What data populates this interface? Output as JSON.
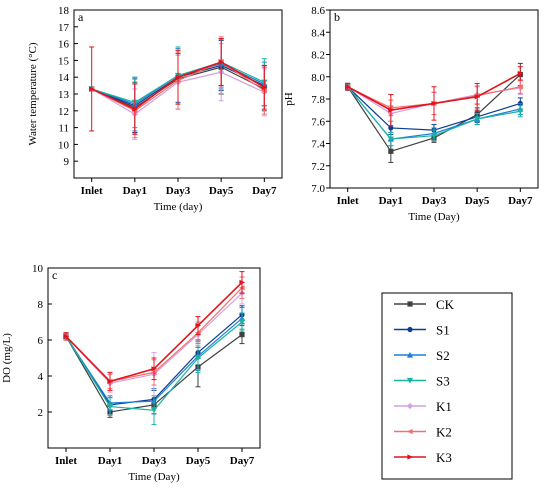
{
  "legend": [
    "CK",
    "S1",
    "S2",
    "S3",
    "K1",
    "K2",
    "K3"
  ],
  "colors": {
    "CK": "#404040",
    "S1": "#0b3d91",
    "S2": "#1f7fd6",
    "S3": "#19b3a0",
    "K1": "#d6a0e0",
    "K2": "#f07070",
    "K3": "#e3131b"
  },
  "chart_data": [
    {
      "id": "a",
      "type": "line",
      "panel_label": "a",
      "xlabel": "Time (day)",
      "ylabel": "Water temperature (°C)",
      "categories": [
        "Inlet",
        "Day1",
        "Day3",
        "Day5",
        "Day7"
      ],
      "ylim": [
        8,
        18
      ],
      "yticks": [
        9,
        10,
        11,
        12,
        13,
        14,
        15,
        16,
        17,
        18
      ],
      "series": [
        {
          "name": "CK",
          "values": [
            13.3,
            12.2,
            13.9,
            14.6,
            13.3
          ],
          "err": [
            0,
            1.5,
            1.5,
            1.6,
            1.3
          ]
        },
        {
          "name": "S1",
          "values": [
            13.3,
            12.3,
            14.0,
            14.7,
            13.5
          ],
          "err": [
            0,
            1.6,
            1.5,
            1.5,
            1.2
          ]
        },
        {
          "name": "S2",
          "values": [
            13.3,
            12.4,
            14.1,
            14.8,
            13.6
          ],
          "err": [
            0,
            1.6,
            1.6,
            1.5,
            1.3
          ]
        },
        {
          "name": "S3",
          "values": [
            13.3,
            12.5,
            14.1,
            14.9,
            13.7
          ],
          "err": [
            0,
            1.5,
            1.7,
            1.4,
            1.4
          ]
        },
        {
          "name": "K1",
          "values": [
            13.3,
            11.8,
            13.7,
            14.3,
            13.1
          ],
          "err": [
            0,
            1.5,
            1.6,
            1.7,
            1.4
          ]
        },
        {
          "name": "K2",
          "values": [
            13.3,
            12.0,
            13.8,
            14.9,
            13.2
          ],
          "err": [
            0,
            1.6,
            1.7,
            1.5,
            1.4
          ]
        },
        {
          "name": "K3",
          "values": [
            13.3,
            12.1,
            14.0,
            14.9,
            13.4
          ],
          "err": [
            2.5,
            1.5,
            1.6,
            1.4,
            1.3
          ]
        }
      ]
    },
    {
      "id": "b",
      "type": "line",
      "panel_label": "b",
      "xlabel": "Time (Day)",
      "ylabel": "pH",
      "categories": [
        "Inlet",
        "Day1",
        "Day3",
        "Day5",
        "Day7"
      ],
      "ylim": [
        7.0,
        8.6
      ],
      "yticks": [
        7.0,
        7.2,
        7.4,
        7.6,
        7.8,
        8.0,
        8.2,
        8.4,
        8.6
      ],
      "series": [
        {
          "name": "CK",
          "values": [
            7.91,
            7.33,
            7.45,
            7.66,
            8.02
          ],
          "err": [
            0.03,
            0.1,
            0.04,
            0.06,
            0.1
          ]
        },
        {
          "name": "S1",
          "values": [
            7.91,
            7.54,
            7.52,
            7.64,
            7.76
          ],
          "err": [
            0.03,
            0.06,
            0.05,
            0.05,
            0.05
          ]
        },
        {
          "name": "S2",
          "values": [
            7.91,
            7.44,
            7.49,
            7.62,
            7.71
          ],
          "err": [
            0.03,
            0.06,
            0.05,
            0.05,
            0.05
          ]
        },
        {
          "name": "S3",
          "values": [
            7.91,
            7.44,
            7.47,
            7.62,
            7.69
          ],
          "err": [
            0.03,
            0.06,
            0.05,
            0.05,
            0.05
          ]
        },
        {
          "name": "K1",
          "values": [
            7.91,
            7.67,
            7.76,
            7.84,
            7.9
          ],
          "err": [
            0.03,
            0.07,
            0.1,
            0.08,
            0.06
          ]
        },
        {
          "name": "K2",
          "values": [
            7.91,
            7.72,
            7.76,
            7.83,
            7.91
          ],
          "err": [
            0.03,
            0.07,
            0.1,
            0.08,
            0.06
          ]
        },
        {
          "name": "K3",
          "values": [
            7.91,
            7.7,
            7.76,
            7.82,
            8.03
          ],
          "err": [
            0.03,
            0.14,
            0.15,
            0.12,
            0.06
          ]
        }
      ]
    },
    {
      "id": "c",
      "type": "line",
      "panel_label": "c",
      "xlabel": "Time (Day)",
      "ylabel": "DO (mg/L)",
      "categories": [
        "Inlet",
        "Day1",
        "Day3",
        "Day5",
        "Day7"
      ],
      "ylim": [
        0,
        10
      ],
      "yticks": [
        2,
        4,
        6,
        8,
        10
      ],
      "series": [
        {
          "name": "CK",
          "values": [
            6.2,
            2.0,
            2.4,
            4.5,
            6.3
          ],
          "err": [
            0.2,
            0.3,
            0.5,
            1.1,
            0.5
          ]
        },
        {
          "name": "S1",
          "values": [
            6.2,
            2.4,
            2.7,
            5.3,
            7.4
          ],
          "err": [
            0.2,
            0.4,
            0.5,
            0.7,
            0.5
          ]
        },
        {
          "name": "S2",
          "values": [
            6.2,
            2.5,
            2.6,
            5.1,
            7.2
          ],
          "err": [
            0.2,
            0.4,
            0.7,
            0.8,
            0.6
          ]
        },
        {
          "name": "S3",
          "values": [
            6.2,
            2.3,
            2.1,
            5.0,
            7.0
          ],
          "err": [
            0.2,
            0.5,
            0.8,
            0.8,
            0.5
          ]
        },
        {
          "name": "K1",
          "values": [
            6.2,
            3.6,
            4.1,
            6.3,
            8.6
          ],
          "err": [
            0.2,
            0.5,
            1.2,
            0.6,
            0.6
          ]
        },
        {
          "name": "K2",
          "values": [
            6.2,
            3.7,
            4.2,
            6.4,
            8.9
          ],
          "err": [
            0.2,
            0.4,
            0.7,
            0.6,
            0.6
          ]
        },
        {
          "name": "K3",
          "values": [
            6.2,
            3.7,
            4.4,
            6.8,
            9.2
          ],
          "err": [
            0.2,
            0.5,
            0.6,
            0.5,
            0.6
          ]
        }
      ]
    }
  ]
}
